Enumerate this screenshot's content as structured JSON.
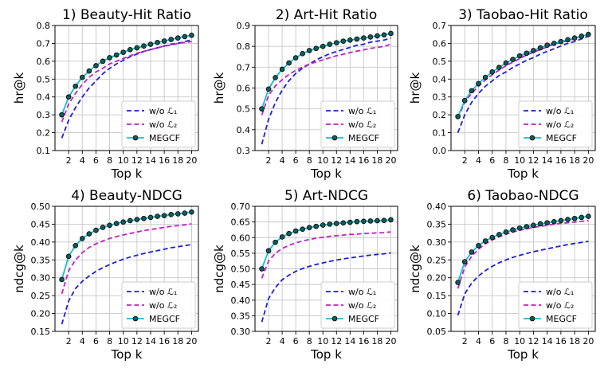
{
  "chart_data": [
    {
      "type": "line",
      "title": "1) Beauty-Hit Ratio",
      "xlabel": "Top k",
      "ylabel": "hr@k",
      "ylim": [
        0.1,
        0.8
      ],
      "yticks": [
        "0.1",
        "0.2",
        "0.3",
        "0.4",
        "0.5",
        "0.6",
        "0.7",
        "0.8"
      ],
      "x": [
        1,
        2,
        3,
        4,
        5,
        6,
        7,
        8,
        9,
        10,
        11,
        12,
        13,
        14,
        15,
        16,
        17,
        18,
        19,
        20
      ],
      "xticks": [
        "2",
        "4",
        "6",
        "8",
        "10",
        "12",
        "14",
        "16",
        "18",
        "20"
      ],
      "legend": [
        "w/o ℒ₁",
        "w/o ℒ₂",
        "MEGCF"
      ],
      "series": [
        {
          "name": "w/o ℒ₁",
          "color": "#1f1fd6",
          "style": "dashed",
          "values": [
            0.17,
            0.27,
            0.34,
            0.4,
            0.45,
            0.49,
            0.53,
            0.56,
            0.585,
            0.605,
            0.625,
            0.64,
            0.655,
            0.665,
            0.675,
            0.685,
            0.695,
            0.7,
            0.71,
            0.72
          ]
        },
        {
          "name": "w/o ℒ₂",
          "color": "#c41fc4",
          "style": "dashed",
          "values": [
            0.26,
            0.36,
            0.42,
            0.47,
            0.51,
            0.54,
            0.56,
            0.585,
            0.6,
            0.615,
            0.63,
            0.645,
            0.655,
            0.665,
            0.675,
            0.685,
            0.69,
            0.7,
            0.705,
            0.71
          ]
        },
        {
          "name": "MEGCF",
          "color": "#17becf",
          "style": "solid-markers",
          "values": [
            0.3,
            0.4,
            0.46,
            0.51,
            0.545,
            0.575,
            0.6,
            0.62,
            0.635,
            0.65,
            0.665,
            0.675,
            0.685,
            0.695,
            0.705,
            0.713,
            0.722,
            0.73,
            0.738,
            0.745
          ]
        }
      ]
    },
    {
      "type": "line",
      "title": "2) Art-Hit Ratio",
      "xlabel": "Top k",
      "ylabel": "hr@k",
      "ylim": [
        0.3,
        0.9
      ],
      "yticks": [
        "0.3",
        "0.4",
        "0.5",
        "0.6",
        "0.7",
        "0.8",
        "0.9"
      ],
      "x": [
        1,
        2,
        3,
        4,
        5,
        6,
        7,
        8,
        9,
        10,
        11,
        12,
        13,
        14,
        15,
        16,
        17,
        18,
        19,
        20
      ],
      "xticks": [
        "2",
        "4",
        "6",
        "8",
        "10",
        "12",
        "14",
        "16",
        "18",
        "20"
      ],
      "legend": [
        "w/o ℒ₁",
        "w/o ℒ₂",
        "MEGCF"
      ],
      "series": [
        {
          "name": "w/o ℒ₁",
          "color": "#1f1fd6",
          "style": "dashed",
          "values": [
            0.33,
            0.45,
            0.53,
            0.59,
            0.635,
            0.67,
            0.695,
            0.715,
            0.735,
            0.75,
            0.765,
            0.775,
            0.785,
            0.795,
            0.805,
            0.81,
            0.82,
            0.825,
            0.83,
            0.84
          ]
        },
        {
          "name": "w/o ℒ₂",
          "color": "#c41fc4",
          "style": "dashed",
          "values": [
            0.47,
            0.565,
            0.61,
            0.64,
            0.665,
            0.685,
            0.7,
            0.715,
            0.725,
            0.735,
            0.745,
            0.755,
            0.762,
            0.77,
            0.777,
            0.783,
            0.79,
            0.795,
            0.8,
            0.81
          ]
        },
        {
          "name": "MEGCF",
          "color": "#17becf",
          "style": "solid-markers",
          "values": [
            0.5,
            0.595,
            0.65,
            0.69,
            0.72,
            0.745,
            0.765,
            0.78,
            0.79,
            0.8,
            0.81,
            0.817,
            0.825,
            0.83,
            0.835,
            0.84,
            0.845,
            0.85,
            0.855,
            0.862
          ]
        }
      ]
    },
    {
      "type": "line",
      "title": "3) Taobao-Hit Ratio",
      "xlabel": "Top k",
      "ylabel": "hr@k",
      "ylim": [
        0.0,
        0.7
      ],
      "yticks": [
        "0.0",
        "0.1",
        "0.2",
        "0.3",
        "0.4",
        "0.5",
        "0.6",
        "0.7"
      ],
      "x": [
        1,
        2,
        3,
        4,
        5,
        6,
        7,
        8,
        9,
        10,
        11,
        12,
        13,
        14,
        15,
        16,
        17,
        18,
        19,
        20
      ],
      "xticks": [
        "2",
        "4",
        "6",
        "8",
        "10",
        "12",
        "14",
        "16",
        "18",
        "20"
      ],
      "legend": [
        "w/o ℒ₁",
        "w/o ℒ₂",
        "MEGCF"
      ],
      "series": [
        {
          "name": "w/o ℒ₁",
          "color": "#1f1fd6",
          "style": "dashed",
          "values": [
            0.1,
            0.2,
            0.27,
            0.32,
            0.36,
            0.39,
            0.42,
            0.44,
            0.465,
            0.485,
            0.505,
            0.52,
            0.54,
            0.555,
            0.57,
            0.585,
            0.6,
            0.61,
            0.625,
            0.64
          ]
        },
        {
          "name": "w/o ℒ₂",
          "color": "#c41fc4",
          "style": "dashed",
          "values": [
            0.18,
            0.27,
            0.32,
            0.36,
            0.395,
            0.425,
            0.45,
            0.475,
            0.495,
            0.515,
            0.535,
            0.55,
            0.565,
            0.58,
            0.595,
            0.605,
            0.615,
            0.625,
            0.635,
            0.645
          ]
        },
        {
          "name": "MEGCF",
          "color": "#17becf",
          "style": "solid-markers",
          "values": [
            0.19,
            0.28,
            0.335,
            0.375,
            0.41,
            0.44,
            0.465,
            0.49,
            0.51,
            0.53,
            0.545,
            0.56,
            0.575,
            0.59,
            0.6,
            0.61,
            0.62,
            0.63,
            0.64,
            0.65
          ]
        }
      ]
    },
    {
      "type": "line",
      "title": "4) Beauty-NDCG",
      "xlabel": "Top k",
      "ylabel": "ndcg@k",
      "ylim": [
        0.15,
        0.5
      ],
      "yticks": [
        "0.15",
        "0.20",
        "0.25",
        "0.30",
        "0.35",
        "0.40",
        "0.45",
        "0.50"
      ],
      "x": [
        1,
        2,
        3,
        4,
        5,
        6,
        7,
        8,
        9,
        10,
        11,
        12,
        13,
        14,
        15,
        16,
        17,
        18,
        19,
        20
      ],
      "xticks": [
        "2",
        "4",
        "6",
        "8",
        "10",
        "12",
        "14",
        "16",
        "18",
        "20"
      ],
      "legend": [
        "w/o ℒ₁",
        "w/o ℒ₂",
        "MEGCF"
      ],
      "series": [
        {
          "name": "w/o ℒ₁",
          "color": "#1f1fd6",
          "style": "dashed",
          "values": [
            0.17,
            0.235,
            0.27,
            0.29,
            0.305,
            0.318,
            0.328,
            0.337,
            0.345,
            0.352,
            0.358,
            0.363,
            0.368,
            0.372,
            0.376,
            0.38,
            0.384,
            0.387,
            0.39,
            0.393
          ]
        },
        {
          "name": "w/o ℒ₂",
          "color": "#c41fc4",
          "style": "dashed",
          "values": [
            0.255,
            0.32,
            0.35,
            0.37,
            0.385,
            0.395,
            0.403,
            0.41,
            0.415,
            0.42,
            0.424,
            0.428,
            0.432,
            0.435,
            0.438,
            0.441,
            0.444,
            0.446,
            0.448,
            0.451
          ]
        },
        {
          "name": "MEGCF",
          "color": "#17becf",
          "style": "solid-markers",
          "values": [
            0.295,
            0.36,
            0.39,
            0.41,
            0.423,
            0.433,
            0.441,
            0.447,
            0.452,
            0.456,
            0.46,
            0.463,
            0.466,
            0.469,
            0.472,
            0.474,
            0.477,
            0.479,
            0.481,
            0.484
          ]
        }
      ]
    },
    {
      "type": "line",
      "title": "5) Art-NDCG",
      "xlabel": "Top k",
      "ylabel": "ndcg@k",
      "ylim": [
        0.3,
        0.7
      ],
      "yticks": [
        "0.30",
        "0.35",
        "0.40",
        "0.45",
        "0.50",
        "0.55",
        "0.60",
        "0.65",
        "0.70"
      ],
      "x": [
        1,
        2,
        3,
        4,
        5,
        6,
        7,
        8,
        9,
        10,
        11,
        12,
        13,
        14,
        15,
        16,
        17,
        18,
        19,
        20
      ],
      "xticks": [
        "2",
        "4",
        "6",
        "8",
        "10",
        "12",
        "14",
        "16",
        "18",
        "20"
      ],
      "legend": [
        "w/o ℒ₁",
        "w/o ℒ₂",
        "MEGCF"
      ],
      "series": [
        {
          "name": "w/o ℒ₁",
          "color": "#1f1fd6",
          "style": "dashed",
          "values": [
            0.33,
            0.405,
            0.44,
            0.465,
            0.48,
            0.492,
            0.501,
            0.508,
            0.514,
            0.519,
            0.524,
            0.528,
            0.532,
            0.535,
            0.538,
            0.541,
            0.544,
            0.546,
            0.548,
            0.551
          ]
        },
        {
          "name": "w/o ℒ₂",
          "color": "#c41fc4",
          "style": "dashed",
          "values": [
            0.47,
            0.525,
            0.55,
            0.565,
            0.575,
            0.583,
            0.589,
            0.594,
            0.598,
            0.601,
            0.604,
            0.606,
            0.608,
            0.61,
            0.611,
            0.613,
            0.614,
            0.615,
            0.616,
            0.618
          ]
        },
        {
          "name": "MEGCF",
          "color": "#17becf",
          "style": "solid-markers",
          "values": [
            0.5,
            0.558,
            0.585,
            0.602,
            0.613,
            0.621,
            0.627,
            0.632,
            0.636,
            0.64,
            0.643,
            0.645,
            0.647,
            0.649,
            0.651,
            0.652,
            0.653,
            0.654,
            0.655,
            0.657
          ]
        }
      ]
    },
    {
      "type": "line",
      "title": "6) Taobao-NDCG",
      "xlabel": "Top k",
      "ylabel": "ndcg@k",
      "ylim": [
        0.05,
        0.4
      ],
      "yticks": [
        "0.05",
        "0.10",
        "0.15",
        "0.20",
        "0.25",
        "0.30",
        "0.35",
        "0.40"
      ],
      "x": [
        1,
        2,
        3,
        4,
        5,
        6,
        7,
        8,
        9,
        10,
        11,
        12,
        13,
        14,
        15,
        16,
        17,
        18,
        19,
        20
      ],
      "xticks": [
        "2",
        "4",
        "6",
        "8",
        "10",
        "12",
        "14",
        "16",
        "18",
        "20"
      ],
      "legend": [
        "w/o ℒ₁",
        "w/o ℒ₂",
        "MEGCF"
      ],
      "series": [
        {
          "name": "w/o ℒ₁",
          "color": "#1f1fd6",
          "style": "dashed",
          "values": [
            0.095,
            0.155,
            0.185,
            0.205,
            0.22,
            0.232,
            0.242,
            0.25,
            0.257,
            0.263,
            0.268,
            0.273,
            0.277,
            0.281,
            0.285,
            0.289,
            0.293,
            0.296,
            0.299,
            0.302
          ]
        },
        {
          "name": "w/o ℒ₂",
          "color": "#c41fc4",
          "style": "dashed",
          "values": [
            0.17,
            0.23,
            0.26,
            0.28,
            0.295,
            0.306,
            0.315,
            0.322,
            0.328,
            0.333,
            0.337,
            0.341,
            0.344,
            0.347,
            0.35,
            0.352,
            0.354,
            0.356,
            0.358,
            0.36
          ]
        },
        {
          "name": "MEGCF",
          "color": "#17becf",
          "style": "solid-markers",
          "values": [
            0.187,
            0.245,
            0.272,
            0.29,
            0.303,
            0.313,
            0.321,
            0.328,
            0.334,
            0.339,
            0.343,
            0.347,
            0.351,
            0.354,
            0.357,
            0.36,
            0.363,
            0.366,
            0.369,
            0.372
          ]
        }
      ]
    }
  ]
}
